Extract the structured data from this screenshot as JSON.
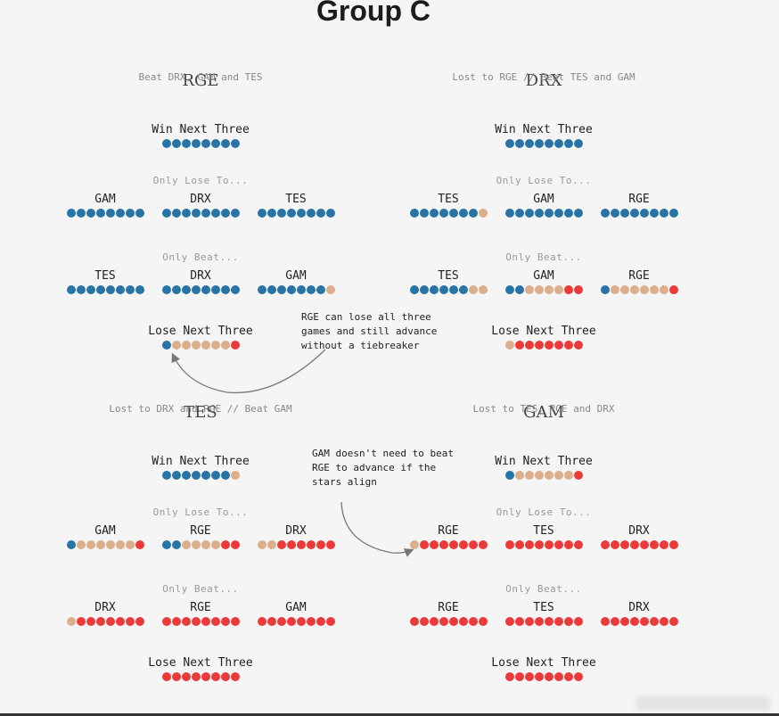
{
  "title": "Group C",
  "colors": {
    "win": "#2874a6",
    "neutral": "#dcae8b",
    "loss": "#ec3a3a"
  },
  "labels": {
    "win_next": "Win Next Three",
    "only_lose": "Only Lose To...",
    "only_beat": "Only Beat...",
    "lose_next": "Lose Next Three"
  },
  "notes": [
    "RGE can lose all three games and still advance without a tiebreaker",
    "GAM doesn't need to beat RGE to advance if the stars align"
  ],
  "teams": [
    {
      "name": "RGE",
      "subtitle": "Beat DRX, GAM and TES",
      "win_next": "BBBBBBBB",
      "only_lose": [
        {
          "opponent": "GAM",
          "dots": "BBBBBBBB"
        },
        {
          "opponent": "DRX",
          "dots": "BBBBBBBB"
        },
        {
          "opponent": "TES",
          "dots": "BBBBBBBB"
        }
      ],
      "only_beat": [
        {
          "opponent": "TES",
          "dots": "BBBBBBBB"
        },
        {
          "opponent": "DRX",
          "dots": "BBBBBBBB"
        },
        {
          "opponent": "GAM",
          "dots": "BBBBBBBN"
        }
      ],
      "lose_next": "BNNNNNNR"
    },
    {
      "name": "DRX",
      "subtitle": "Lost to RGE // Beat TES and GAM",
      "win_next": "BBBBBBBB",
      "only_lose": [
        {
          "opponent": "TES",
          "dots": "BBBBBBBN"
        },
        {
          "opponent": "GAM",
          "dots": "BBBBBBBB"
        },
        {
          "opponent": "RGE",
          "dots": "BBBBBBBB"
        }
      ],
      "only_beat": [
        {
          "opponent": "TES",
          "dots": "BBBBBBNN"
        },
        {
          "opponent": "GAM",
          "dots": "BBNNNNRR"
        },
        {
          "opponent": "RGE",
          "dots": "BNNNNNNR"
        }
      ],
      "lose_next": "NRRRRRRR"
    },
    {
      "name": "TES",
      "subtitle": "Lost to DRX and RGE // Beat GAM",
      "win_next": "BBBBBBBN",
      "only_lose": [
        {
          "opponent": "GAM",
          "dots": "BNNNNNNR"
        },
        {
          "opponent": "RGE",
          "dots": "BBNNNNRR"
        },
        {
          "opponent": "DRX",
          "dots": "NNRRRRRR"
        }
      ],
      "only_beat": [
        {
          "opponent": "DRX",
          "dots": "NRRRRRRR"
        },
        {
          "opponent": "RGE",
          "dots": "RRRRRRRR"
        },
        {
          "opponent": "GAM",
          "dots": "RRRRRRRR"
        }
      ],
      "lose_next": "RRRRRRRR"
    },
    {
      "name": "GAM",
      "subtitle": "Lost to TES, RGE and DRX",
      "win_next": "BNNNNNNR",
      "only_lose": [
        {
          "opponent": "RGE",
          "dots": "NRRRRRRR"
        },
        {
          "opponent": "TES",
          "dots": "RRRRRRRR"
        },
        {
          "opponent": "DRX",
          "dots": "RRRRRRRR"
        }
      ],
      "only_beat": [
        {
          "opponent": "RGE",
          "dots": "RRRRRRRR"
        },
        {
          "opponent": "TES",
          "dots": "RRRRRRRR"
        },
        {
          "opponent": "DRX",
          "dots": "RRRRRRRR"
        }
      ],
      "lose_next": "RRRRRRRR"
    }
  ]
}
